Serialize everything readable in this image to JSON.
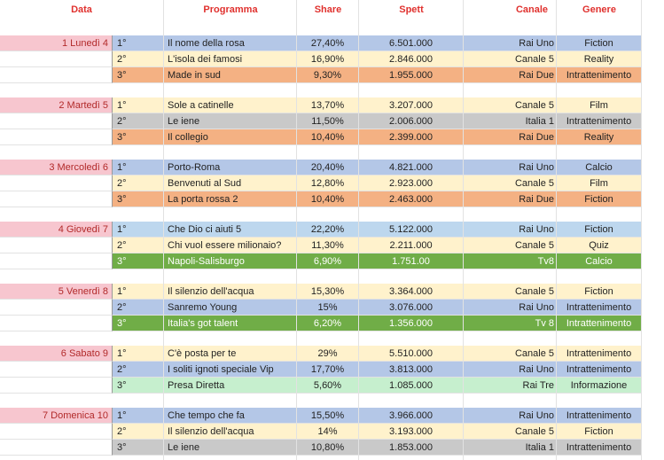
{
  "header": {
    "data": "Data",
    "programma": "Programma",
    "share": "Share",
    "spett": "Spett",
    "canale": "Canale",
    "genere": "Genere"
  },
  "colors": {
    "blue": "#b4c7e7",
    "yellow": "#fff2cc",
    "orange": "#f4b183",
    "gray": "#c9c9c9",
    "green": "#70ad47",
    "lightblue": "#bdd7ee",
    "lightgreen": "#c6efce",
    "pink": "#f7c6cf"
  },
  "days": [
    {
      "label": "1 Lunedì 4",
      "rows": [
        {
          "rank": "1°",
          "programma": "Il nome della rosa",
          "share": "27,40%",
          "spett": "6.501.000",
          "canale": "Rai Uno",
          "genere": "Fiction",
          "color": "blue"
        },
        {
          "rank": "2°",
          "programma": "L'isola dei famosi",
          "share": "16,90%",
          "spett": "2.846.000",
          "canale": "Canale 5",
          "genere": "Reality",
          "color": "yellow"
        },
        {
          "rank": "3°",
          "programma": "Made in sud",
          "share": "9,30%",
          "spett": "1.955.000",
          "canale": "Rai Due",
          "genere": "Intrattenimento",
          "color": "orange"
        }
      ]
    },
    {
      "label": "2 Martedì 5",
      "rows": [
        {
          "rank": "1°",
          "programma": "Sole a catinelle",
          "share": "13,70%",
          "spett": "3.207.000",
          "canale": "Canale 5",
          "genere": "Film",
          "color": "yellow"
        },
        {
          "rank": "2°",
          "programma": "Le iene",
          "share": "11,50%",
          "spett": "2.006.000",
          "canale": "Italia 1",
          "genere": "Intrattenimento",
          "color": "gray"
        },
        {
          "rank": "3°",
          "programma": "Il collegio",
          "share": "10,40%",
          "spett": "2.399.000",
          "canale": "Rai Due",
          "genere": "Reality",
          "color": "orange"
        }
      ]
    },
    {
      "label": "3 Mercoledì 6",
      "rows": [
        {
          "rank": "1°",
          "programma": "Porto-Roma",
          "share": "20,40%",
          "spett": "4.821.000",
          "canale": "Rai Uno",
          "genere": "Calcio",
          "color": "blue"
        },
        {
          "rank": "2°",
          "programma": "Benvenuti al Sud",
          "share": "12,80%",
          "spett": "2.923.000",
          "canale": "Canale 5",
          "genere": "Film",
          "color": "yellow"
        },
        {
          "rank": "3°",
          "programma": "La porta rossa 2",
          "share": "10,40%",
          "spett": "2.463.000",
          "canale": "Rai Due",
          "genere": "Fiction",
          "color": "orange"
        }
      ]
    },
    {
      "label": "4 Giovedì 7",
      "rows": [
        {
          "rank": "1°",
          "programma": "Che Dio ci aiuti 5",
          "share": "22,20%",
          "spett": "5.122.000",
          "canale": "Rai Uno",
          "genere": "Fiction",
          "color": "lightblue"
        },
        {
          "rank": "2°",
          "programma": "Chi vuol essere milionaio?",
          "share": "11,30%",
          "spett": "2.211.000",
          "canale": "Canale 5",
          "genere": "Quiz",
          "color": "yellow"
        },
        {
          "rank": "3°",
          "programma": "Napoli-Salisburgo",
          "share": "6,90%",
          "spett": "1.751.00",
          "canale": "Tv8",
          "genere": "Calcio",
          "color": "green"
        }
      ]
    },
    {
      "label": "5 Venerdì 8",
      "rows": [
        {
          "rank": "1°",
          "programma": "Il silenzio dell'acqua",
          "share": "15,30%",
          "spett": "3.364.000",
          "canale": "Canale 5",
          "genere": "Fiction",
          "color": "yellow"
        },
        {
          "rank": "2°",
          "programma": "Sanremo Young",
          "share": "15%",
          "spett": "3.076.000",
          "canale": "Rai Uno",
          "genere": "Intrattenimento",
          "color": "blue"
        },
        {
          "rank": "3°",
          "programma": "Italia's got talent",
          "share": "6,20%",
          "spett": "1.356.000",
          "canale": "Tv 8",
          "genere": "Intrattenimento",
          "color": "green"
        }
      ]
    },
    {
      "label": "6 Sabato 9",
      "rows": [
        {
          "rank": "1°",
          "programma": "C'è posta per te",
          "share": "29%",
          "spett": "5.510.000",
          "canale": "Canale 5",
          "genere": "Intrattenimento",
          "color": "yellow"
        },
        {
          "rank": "2°",
          "programma": "I soliti ignoti speciale Vip",
          "share": "17,70%",
          "spett": "3.813.000",
          "canale": "Rai Uno",
          "genere": "Intrattenimento",
          "color": "blue"
        },
        {
          "rank": "3°",
          "programma": "Presa Diretta",
          "share": "5,60%",
          "spett": "1.085.000",
          "canale": "Rai Tre",
          "genere": "Informazione",
          "color": "lightgreen"
        }
      ]
    },
    {
      "label": "7 Domenica 10",
      "rows": [
        {
          "rank": "1°",
          "programma": "Che tempo che fa",
          "share": "15,50%",
          "spett": "3.966.000",
          "canale": "Rai Uno",
          "genere": "Intrattenimento",
          "color": "blue"
        },
        {
          "rank": "2°",
          "programma": "Il silenzio dell'acqua",
          "share": "14%",
          "spett": "3.193.000",
          "canale": "Canale 5",
          "genere": "Fiction",
          "color": "yellow"
        },
        {
          "rank": "3°",
          "programma": "Le iene",
          "share": "10,80%",
          "spett": "1.853.000",
          "canale": "Italia 1",
          "genere": "Intrattenimento",
          "color": "gray"
        }
      ]
    }
  ]
}
